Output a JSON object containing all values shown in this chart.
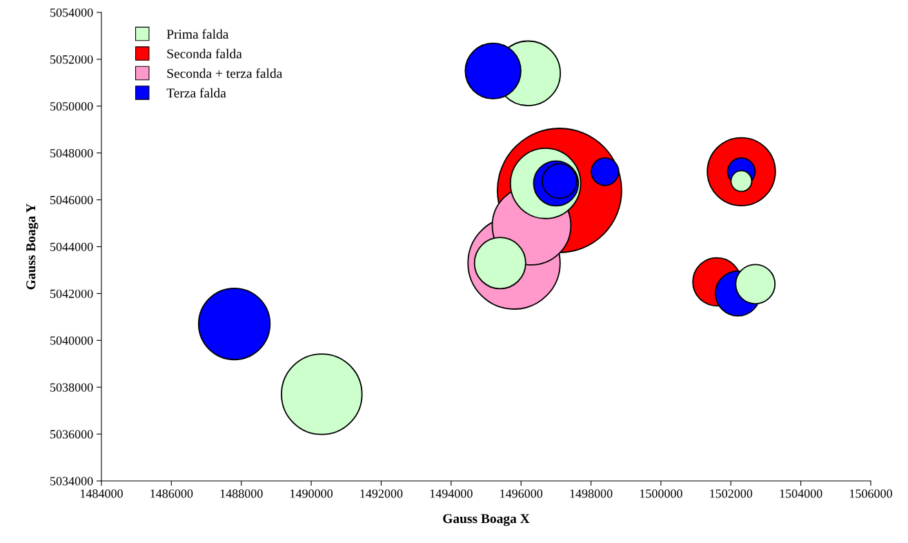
{
  "chart_data": {
    "type": "bubble",
    "xlabel": "Gauss Boaga X",
    "ylabel": "Gauss Boaga Y",
    "xlim": [
      1484000,
      1506000
    ],
    "xticks": [
      1484000,
      1486000,
      1488000,
      1490000,
      1492000,
      1494000,
      1496000,
      1498000,
      1500000,
      1502000,
      1504000,
      1506000
    ],
    "ylim": [
      5034000,
      5054000
    ],
    "yticks": [
      5034000,
      5036000,
      5038000,
      5040000,
      5042000,
      5044000,
      5046000,
      5048000,
      5050000,
      5052000,
      5054000
    ],
    "grid": false,
    "legend": "top left",
    "series": [
      {
        "name": "Prima falda",
        "color": "#ccffcc",
        "x": [
          1496700,
          1495400,
          1496200,
          1490300,
          1502300,
          1502700
        ],
        "values": [
          5046700,
          5043300,
          5051400,
          5037700,
          5046800,
          5042400
        ],
        "sizes": [
          0.32,
          0.17,
          0.27,
          0.42,
          0.028,
          0.1
        ]
      },
      {
        "name": "Seconda falda",
        "color": "#ff0000",
        "x": [
          1497100,
          1502300,
          1501600
        ],
        "values": [
          5046400,
          5047200,
          5042500
        ],
        "sizes": [
          1.0,
          0.3,
          0.15
        ]
      },
      {
        "name": "Seconda + terza falda",
        "color": "#ff99cc",
        "x": [
          1496300,
          1495800
        ],
        "values": [
          5044900,
          5043300
        ],
        "sizes": [
          0.4,
          0.55
        ]
      },
      {
        "name": "Terza falda",
        "color": "#0000ff",
        "x": [
          1497000,
          1497100,
          1498400,
          1495200,
          1487800,
          1502300,
          1502200
        ],
        "values": [
          5046700,
          5046800,
          5047200,
          5051500,
          5040700,
          5047200,
          5042000
        ],
        "sizes": [
          0.13,
          0.077,
          0.049,
          0.2,
          0.33,
          0.049,
          0.13
        ]
      }
    ]
  }
}
